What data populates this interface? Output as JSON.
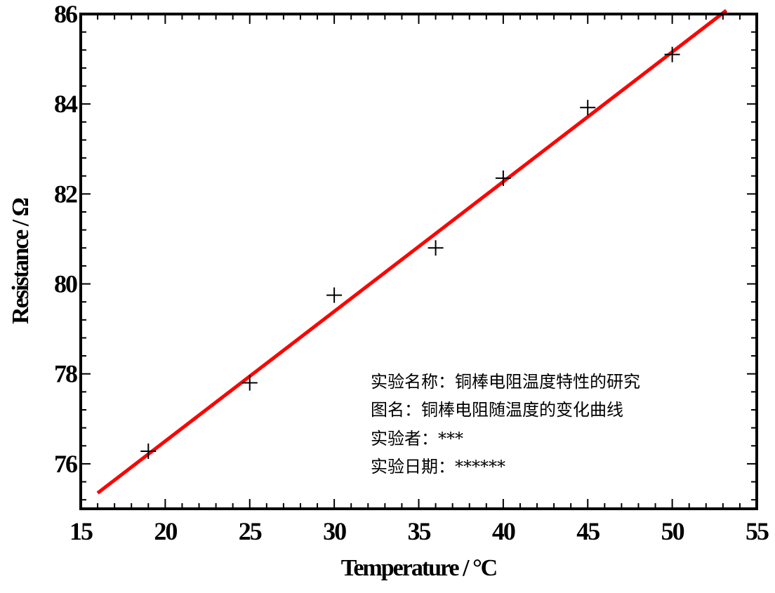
{
  "chart_data": {
    "type": "scatter",
    "title": "",
    "xlabel": "Temperature / °C",
    "ylabel": "Resistance / Ω",
    "xlim": [
      15,
      55
    ],
    "ylim": [
      75,
      86
    ],
    "x_ticks": [
      15,
      20,
      25,
      30,
      35,
      40,
      45,
      50,
      55
    ],
    "y_ticks": [
      76,
      78,
      80,
      82,
      84,
      86
    ],
    "grid": false,
    "series": [
      {
        "kind": "points",
        "marker": "plus",
        "color": "#000000",
        "points": [
          {
            "x": 19,
            "y": 76.28
          },
          {
            "x": 25,
            "y": 77.8
          },
          {
            "x": 30,
            "y": 79.75
          },
          {
            "x": 36,
            "y": 80.8
          },
          {
            "x": 40,
            "y": 82.35
          },
          {
            "x": 45,
            "y": 83.92
          },
          {
            "x": 50,
            "y": 85.1
          }
        ]
      },
      {
        "kind": "fit-line",
        "color": "#ff0000",
        "points": [
          {
            "x": 16,
            "y": 75.35
          },
          {
            "x": 53.2,
            "y": 86.08
          }
        ]
      }
    ],
    "annotations": [
      "实验名称：铜棒电阻温度特性的研究",
      "图名：铜棒电阻随温度的变化曲线",
      "实验者：***",
      "实验日期：******"
    ]
  }
}
